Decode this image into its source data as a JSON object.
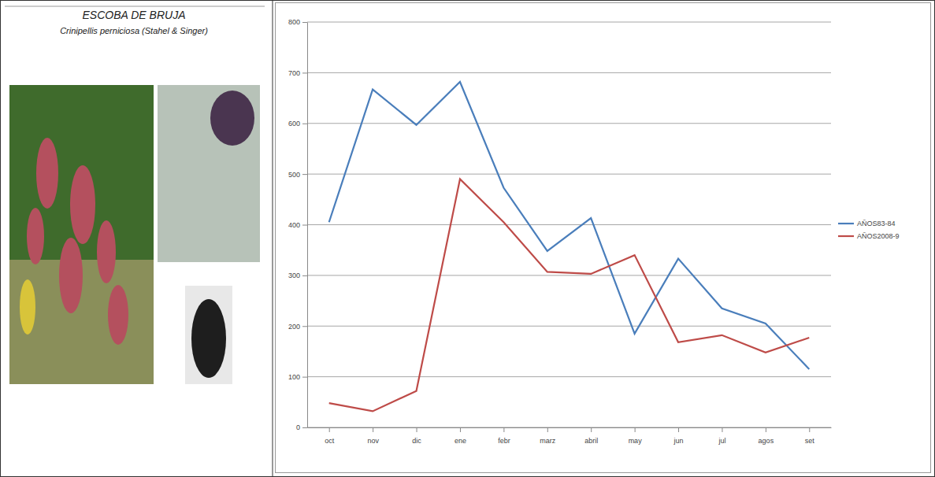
{
  "chart_data": {
    "type": "line",
    "title": "ESCOBA DE BRUJA",
    "subtitle": "Crinipellis perniciosa (Stahel & Singer)",
    "categories": [
      "oct",
      "nov",
      "dic",
      "ene",
      "febr",
      "marz",
      "abril",
      "may",
      "jun",
      "jul",
      "agos",
      "set"
    ],
    "series": [
      {
        "name": "AÑOS83-84",
        "color": "#4a7ebb",
        "values": [
          405,
          667,
          597,
          682,
          473,
          348,
          413,
          185,
          333,
          235,
          205,
          115
        ]
      },
      {
        "name": "AÑOS2008-9",
        "color": "#be4b48",
        "values": [
          48,
          32,
          72,
          490,
          405,
          307,
          303,
          340,
          168,
          182,
          148,
          177
        ]
      }
    ],
    "ylim": [
      0,
      800
    ],
    "yticks": [
      0,
      100,
      200,
      300,
      400,
      500,
      600,
      700,
      800
    ],
    "grid": true,
    "legend": "right"
  }
}
